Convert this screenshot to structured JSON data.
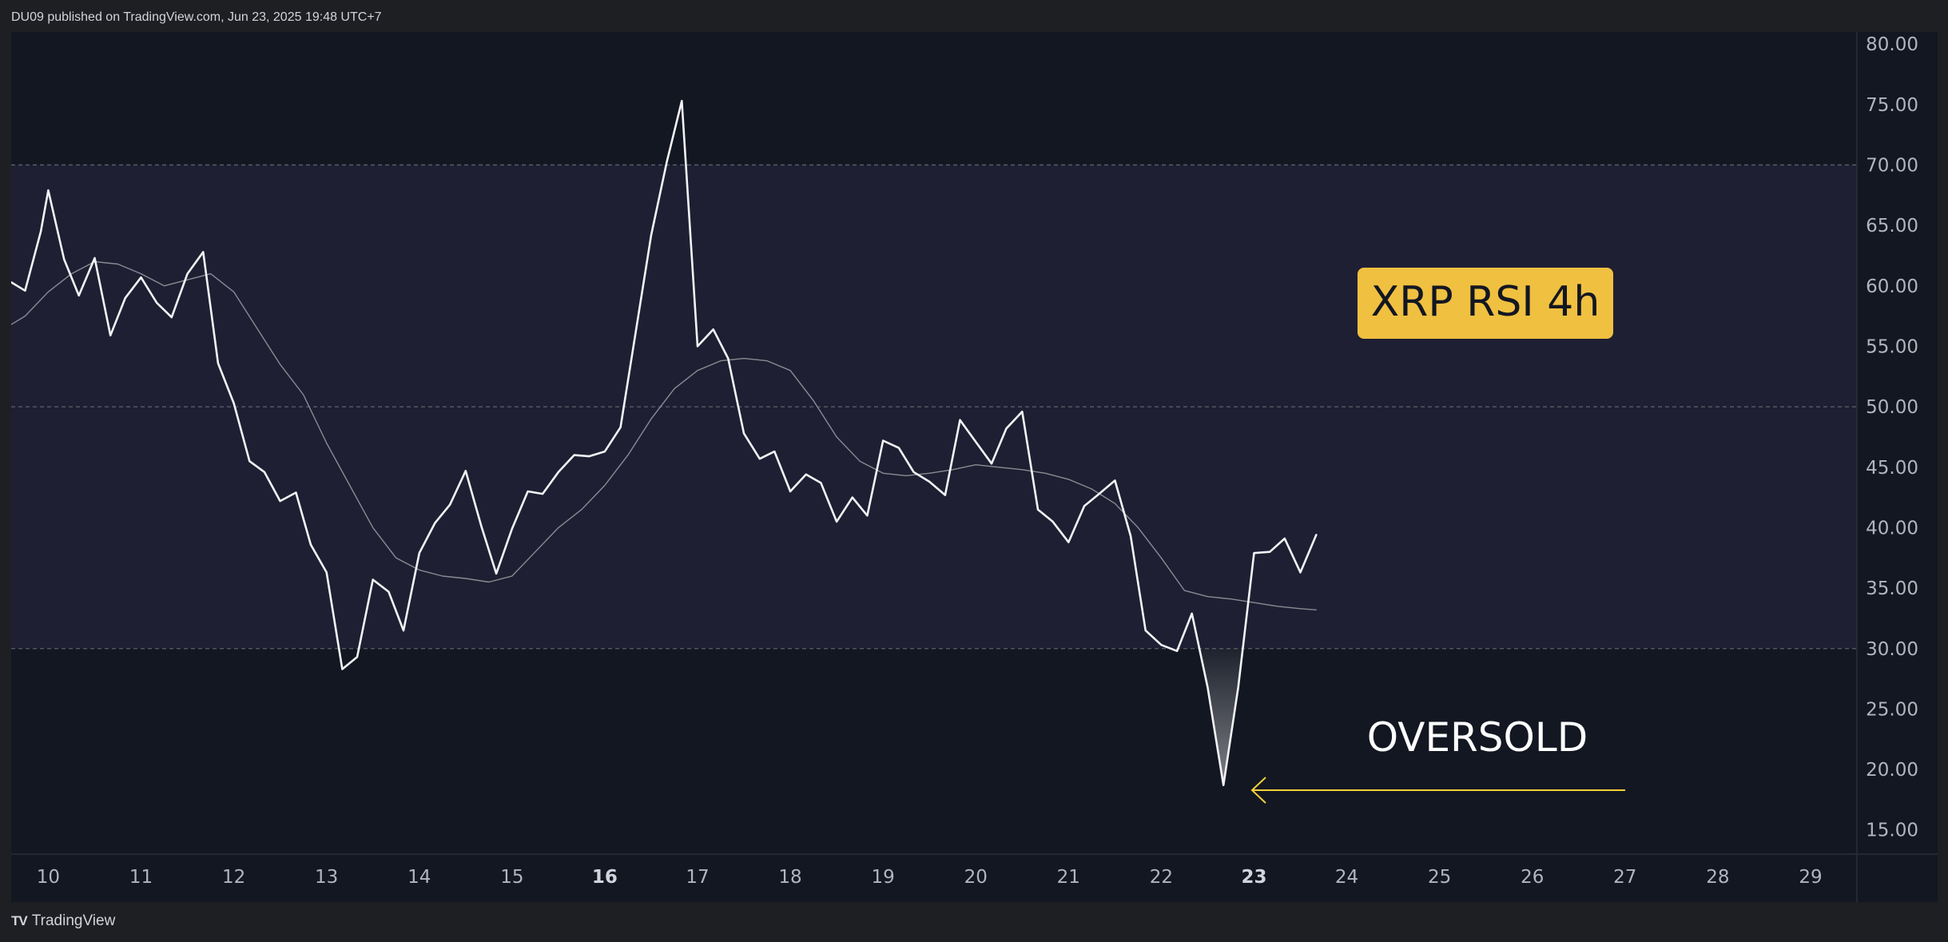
{
  "header": {
    "published_text": "DU09 published on TradingView.com, Jun 23, 2025 19:48 UTC+7"
  },
  "footer": {
    "logo_text": "TradingView",
    "logo_mark": "TV"
  },
  "colors": {
    "background": "#131722",
    "band": "#1f1f33",
    "rsi_line": "#f3f3f6",
    "rsi_ma_line": "#8a8b93",
    "badge_bg": "#f0c040",
    "badge_text": "#131722",
    "arrow": "#f5d13a",
    "axis_text": "#b2b5be",
    "level_line": "#5d606b"
  },
  "chart_data": {
    "type": "line",
    "xlabel": "",
    "ylabel": "",
    "ylim": [
      13,
      81
    ],
    "xlim": [
      9.6,
      29.5
    ],
    "x_ticks": [
      "10",
      "11",
      "12",
      "13",
      "14",
      "15",
      "16",
      "17",
      "18",
      "19",
      "20",
      "21",
      "22",
      "23",
      "24",
      "25",
      "26",
      "27",
      "28",
      "29"
    ],
    "bold_x_ticks": [
      "16",
      "23"
    ],
    "y_ticks": [
      "80.00",
      "75.00",
      "70.00",
      "65.00",
      "60.00",
      "55.00",
      "50.00",
      "45.00",
      "40.00",
      "35.00",
      "30.00",
      "25.00",
      "20.00",
      "15.00"
    ],
    "levels": [
      70,
      50,
      30
    ],
    "band": [
      30,
      70
    ],
    "series": [
      {
        "x": [
          9.6,
          9.75,
          9.92,
          10.0,
          10.17,
          10.33,
          10.5,
          10.67,
          10.83,
          11.0,
          11.17,
          11.33,
          11.5,
          11.67,
          11.83,
          12.0,
          12.17,
          12.33,
          12.5,
          12.67,
          12.83,
          13.0,
          13.17,
          13.33,
          13.5,
          13.67,
          13.83,
          14.0,
          14.17,
          14.33,
          14.5,
          14.67,
          14.83,
          15.0,
          15.17,
          15.33,
          15.5,
          15.67,
          15.83,
          16.0,
          16.17,
          16.33,
          16.5,
          16.67,
          16.83,
          17.0,
          17.17,
          17.33,
          17.5,
          17.67,
          17.83,
          18.0,
          18.17,
          18.33,
          18.5,
          18.67,
          18.83,
          19.0,
          19.17,
          19.33,
          19.5,
          19.67,
          19.83,
          20.0,
          20.17,
          20.33,
          20.5,
          20.67,
          20.83,
          21.0,
          21.17,
          21.33,
          21.5,
          21.67,
          21.83,
          22.0,
          22.17,
          22.33,
          22.5,
          22.67,
          22.83,
          23.0,
          23.17,
          23.33,
          23.5,
          23.67
        ],
        "values": [
          60.3,
          59.6,
          64.5,
          67.9,
          62.2,
          59.2,
          62.3,
          55.9,
          59.0,
          60.7,
          58.6,
          57.4,
          61.0,
          62.8,
          53.6,
          50.3,
          45.5,
          44.6,
          42.2,
          42.9,
          38.6,
          36.3,
          28.3,
          29.3,
          35.7,
          34.7,
          31.5,
          37.9,
          40.4,
          41.9,
          44.7,
          40.1,
          36.2,
          39.9,
          43.0,
          42.8,
          44.6,
          46.0,
          45.9,
          46.3,
          48.3,
          56.0,
          64.2,
          70.3,
          75.3,
          55.0,
          56.4,
          54.0,
          47.8,
          45.7,
          46.3,
          43.0,
          44.4,
          43.7,
          40.5,
          42.5,
          41.0,
          47.2,
          46.6,
          44.6,
          43.8,
          42.7,
          48.9,
          47.1,
          45.3,
          48.2,
          49.6,
          41.5,
          40.5,
          38.8,
          41.8,
          42.8,
          43.9,
          39.3,
          31.5,
          30.3,
          29.8,
          32.9,
          26.8,
          18.7,
          26.8,
          37.9,
          38.0,
          39.1,
          36.3,
          39.4
        ]
      },
      {
        "x": [
          9.6,
          9.75,
          10.0,
          10.25,
          10.5,
          10.75,
          11.0,
          11.25,
          11.5,
          11.75,
          12.0,
          12.25,
          12.5,
          12.75,
          13.0,
          13.25,
          13.5,
          13.75,
          14.0,
          14.25,
          14.5,
          14.75,
          15.0,
          15.25,
          15.5,
          15.75,
          16.0,
          16.25,
          16.5,
          16.75,
          17.0,
          17.25,
          17.5,
          17.75,
          18.0,
          18.25,
          18.5,
          18.75,
          19.0,
          19.25,
          19.5,
          19.75,
          20.0,
          20.25,
          20.5,
          20.75,
          21.0,
          21.25,
          21.5,
          21.75,
          22.0,
          22.25,
          22.5,
          22.75,
          23.0,
          23.25,
          23.5,
          23.67
        ],
        "values": [
          56.8,
          57.5,
          59.5,
          61.0,
          62.0,
          61.8,
          61.0,
          60.0,
          60.5,
          61.0,
          59.5,
          56.5,
          53.5,
          51.0,
          47.0,
          43.5,
          40.0,
          37.5,
          36.5,
          36.0,
          35.8,
          35.5,
          36.0,
          38.0,
          40.0,
          41.5,
          43.5,
          46.0,
          49.0,
          51.5,
          53.0,
          53.8,
          54.0,
          53.8,
          53.0,
          50.5,
          47.5,
          45.5,
          44.5,
          44.3,
          44.5,
          44.8,
          45.2,
          45.0,
          44.8,
          44.5,
          44.0,
          43.2,
          42.0,
          40.0,
          37.5,
          34.8,
          34.3,
          34.1,
          33.8,
          33.5,
          33.3,
          33.2
        ]
      }
    ],
    "annotations": {
      "badge_text": "XRP RSI 4h",
      "oversold_text": "OVERSOLD"
    }
  }
}
